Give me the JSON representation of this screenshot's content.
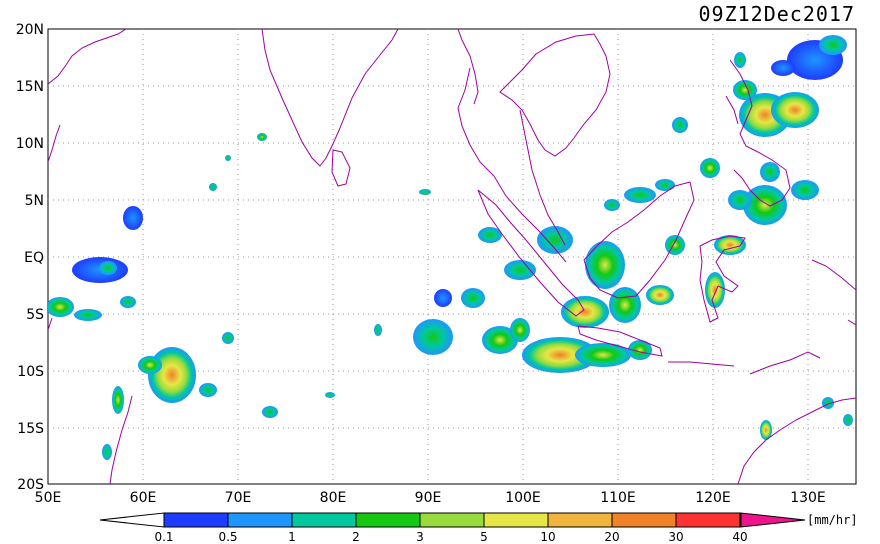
{
  "title": "09Z12Dec2017",
  "lat_labels": [
    "20N",
    "15N",
    "10N",
    "5N",
    "EQ",
    "5S",
    "10S",
    "15S",
    "20S"
  ],
  "lon_labels": [
    "50E",
    "60E",
    "70E",
    "80E",
    "90E",
    "100E",
    "110E",
    "120E",
    "130E"
  ],
  "colorbar": {
    "unit": "[mm/hr]",
    "ticks": [
      "0.1",
      "0.5",
      "1",
      "2",
      "3",
      "5",
      "10",
      "20",
      "30",
      "40"
    ],
    "colors": [
      "#1e3cff",
      "#1e96ff",
      "#00c8a0",
      "#14c814",
      "#96dc3c",
      "#e6e646",
      "#f0b43c",
      "#f08228",
      "#ff3232",
      "#f0148c"
    ]
  },
  "coastline_color": "#a000a0",
  "grid": "dotted"
}
